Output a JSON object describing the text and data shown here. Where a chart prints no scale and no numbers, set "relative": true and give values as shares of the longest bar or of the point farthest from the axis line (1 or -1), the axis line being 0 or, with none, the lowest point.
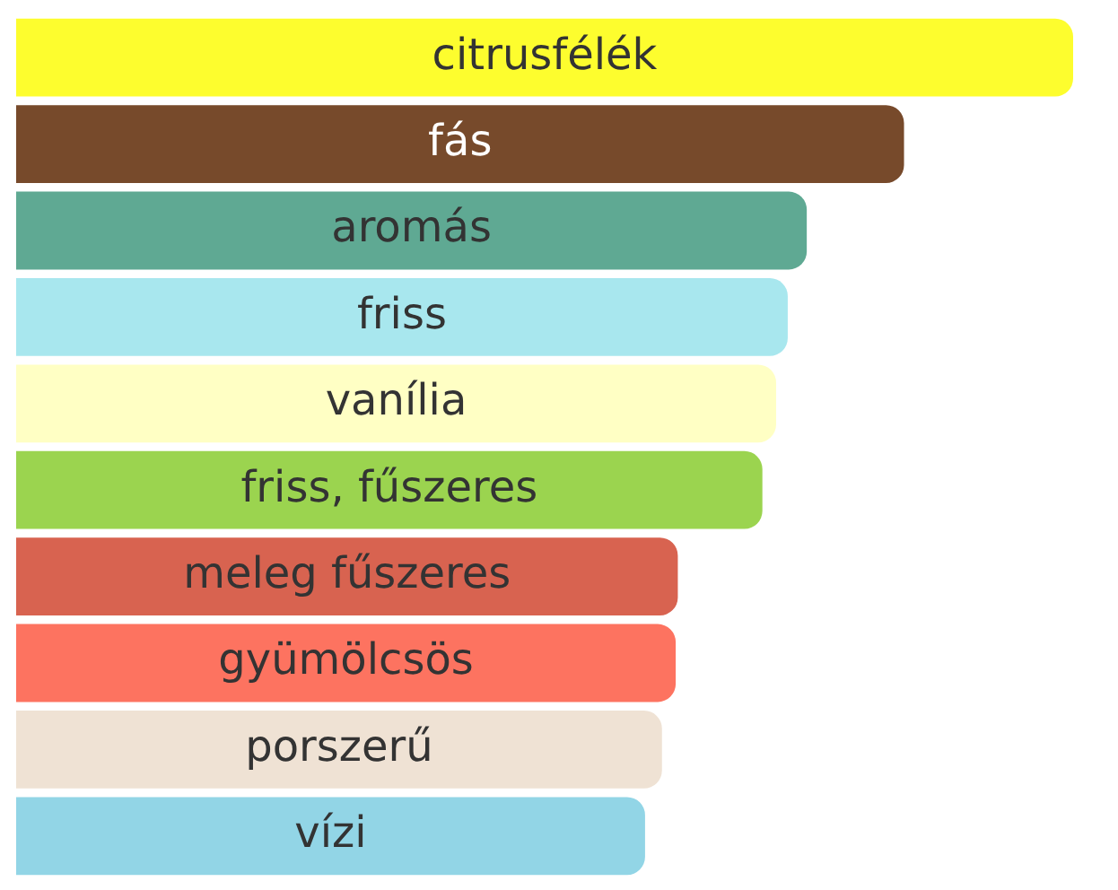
{
  "chart_data": {
    "type": "bar",
    "orientation": "horizontal",
    "relative": true,
    "categories": [
      "citrusfélék",
      "fás",
      "aromás",
      "friss",
      "vanília",
      "friss, fűszeres",
      "meleg fűszeres",
      "gyümölcsös",
      "porszerű",
      "vízi"
    ],
    "values": [
      1,
      0.84,
      0.748,
      0.73,
      0.719,
      0.706,
      0.626,
      0.624,
      0.611,
      0.595
    ],
    "colors": [
      "#fdfd2e",
      "#774a2b",
      "#5fa993",
      "#a8e7ee",
      "#ffffc4",
      "#9bd44f",
      "#d86350",
      "#fd7360",
      "#efe2d4",
      "#92d5e6"
    ],
    "legend": false
  }
}
